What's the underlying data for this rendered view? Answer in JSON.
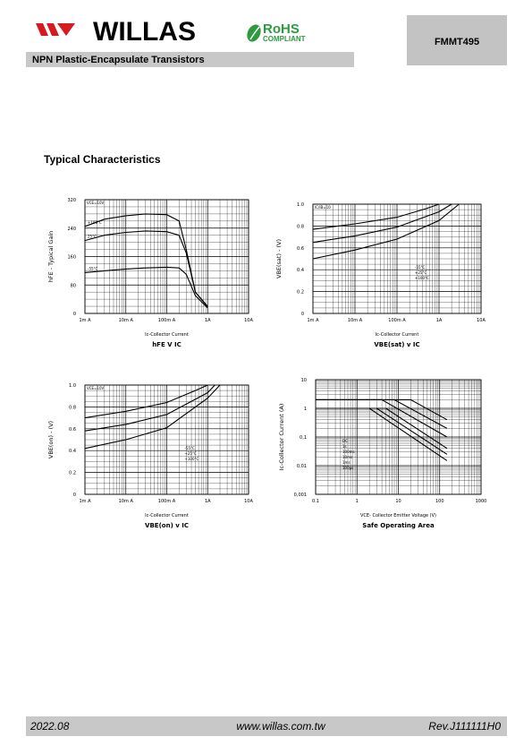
{
  "header": {
    "brand": "WILLAS",
    "rohs": "RoHS",
    "rohs_sub": "COMPLIANT",
    "part": "FMMT495",
    "subtitle": "NPN Plastic-Encapsulate Transistors"
  },
  "section_title": "Typical Characteristics",
  "chart_data": [
    {
      "type": "line",
      "title": "hFE V IC",
      "xlabel": "Ic-Collector Current",
      "ylabel": "hFE - Typical Gain",
      "note": "VCE=10V",
      "xscale": "log",
      "yscale": "linear",
      "xlim": [
        0.001,
        10
      ],
      "ylim": [
        0,
        320
      ],
      "xticks": [
        {
          "value": 0.001,
          "label": "1m A"
        },
        {
          "value": 0.01,
          "label": "10m A"
        },
        {
          "value": 0.1,
          "label": "100m A"
        },
        {
          "value": 1,
          "label": "1A"
        },
        {
          "value": 10,
          "label": "10A"
        }
      ],
      "yticks": [
        0,
        80,
        160,
        240,
        320
      ],
      "grid": true,
      "minor_grid": true,
      "series": [
        {
          "name": "+100°C",
          "color": "#000000",
          "x": [
            0.001,
            0.003,
            0.01,
            0.03,
            0.1,
            0.2,
            0.3,
            0.5,
            1
          ],
          "values": [
            245,
            265,
            275,
            280,
            278,
            260,
            180,
            60,
            20
          ]
        },
        {
          "name": "25°C",
          "color": "#000000",
          "x": [
            0.001,
            0.003,
            0.01,
            0.03,
            0.1,
            0.2,
            0.3,
            0.5,
            1
          ],
          "values": [
            205,
            220,
            228,
            232,
            230,
            220,
            170,
            60,
            18
          ]
        },
        {
          "name": "-55°C",
          "color": "#000000",
          "x": [
            0.001,
            0.003,
            0.01,
            0.03,
            0.1,
            0.2,
            0.3,
            0.5,
            1
          ],
          "values": [
            115,
            120,
            125,
            128,
            130,
            128,
            110,
            50,
            15
          ]
        }
      ]
    },
    {
      "type": "line",
      "title": "VBE(sat) v IC",
      "xlabel": "Ic-Collector Current",
      "ylabel": "VBE(sat) - (V)",
      "note": "IC/IB=10",
      "xscale": "log",
      "yscale": "linear",
      "xlim": [
        0.001,
        10
      ],
      "ylim": [
        0,
        1
      ],
      "xticks": [
        {
          "value": 0.001,
          "label": "1m A"
        },
        {
          "value": 0.01,
          "label": "10m A"
        },
        {
          "value": 0.1,
          "label": "100m A"
        },
        {
          "value": 1,
          "label": "1A"
        },
        {
          "value": 10,
          "label": "10A"
        }
      ],
      "yticks": [
        0,
        0.2,
        0.4,
        0.6,
        0.8,
        {
          "value": 1,
          "label": "1.0"
        }
      ],
      "grid": true,
      "minor_grid": true,
      "series": [
        {
          "name": "-55°C",
          "color": "#000000",
          "x": [
            0.001,
            0.01,
            0.1,
            0.5,
            1
          ],
          "values": [
            0.77,
            0.82,
            0.88,
            0.96,
            1
          ]
        },
        {
          "name": "+25°C",
          "color": "#000000",
          "x": [
            0.001,
            0.01,
            0.1,
            1,
            2
          ],
          "values": [
            0.65,
            0.71,
            0.79,
            0.93,
            1
          ]
        },
        {
          "name": "+100°C",
          "color": "#000000",
          "x": [
            0.001,
            0.01,
            0.1,
            1,
            3
          ],
          "values": [
            0.5,
            0.58,
            0.68,
            0.85,
            1
          ]
        }
      ]
    },
    {
      "type": "line",
      "title": "VBE(on) v IC",
      "xlabel": "Ic-Collector Current",
      "ylabel": "VBE(on) - (V)",
      "note": "VCE=10V",
      "xscale": "log",
      "yscale": "linear",
      "xlim": [
        0.001,
        10
      ],
      "ylim": [
        0,
        1
      ],
      "xticks": [
        {
          "value": 0.001,
          "label": "1m A"
        },
        {
          "value": 0.01,
          "label": "10m A"
        },
        {
          "value": 0.1,
          "label": "100m A"
        },
        {
          "value": 1,
          "label": "1A"
        },
        {
          "value": 10,
          "label": "10A"
        }
      ],
      "yticks": [
        0,
        0.2,
        0.4,
        0.6,
        0.8,
        {
          "value": 1,
          "label": "1.0"
        }
      ],
      "grid": true,
      "minor_grid": true,
      "series": [
        {
          "name": "-55°C",
          "color": "#000000",
          "x": [
            0.001,
            0.01,
            0.1,
            0.5,
            1
          ],
          "values": [
            0.7,
            0.76,
            0.84,
            0.95,
            1
          ]
        },
        {
          "name": "+25°C",
          "color": "#000000",
          "x": [
            0.001,
            0.01,
            0.1,
            1,
            1.5
          ],
          "values": [
            0.58,
            0.64,
            0.73,
            0.93,
            1
          ]
        },
        {
          "name": "+100°C",
          "color": "#000000",
          "x": [
            0.001,
            0.01,
            0.1,
            1,
            2
          ],
          "values": [
            0.42,
            0.5,
            0.61,
            0.88,
            1
          ]
        }
      ]
    },
    {
      "type": "line",
      "title": "Safe Operating Area",
      "xlabel": "VCE- Collector Emitter Voltage (V)",
      "ylabel": "Ic-Collector Current (A)",
      "xscale": "log",
      "yscale": "log",
      "xlim": [
        0.1,
        1000
      ],
      "ylim": [
        0.001,
        10
      ],
      "xticks": [
        0.1,
        1,
        10,
        100,
        1000
      ],
      "yticks": [
        {
          "value": 0.001,
          "label": "0,001"
        },
        {
          "value": 0.01,
          "label": "0,01"
        },
        {
          "value": 0.1,
          "label": "0,1"
        },
        1,
        10
      ],
      "grid": true,
      "minor_grid": true,
      "series": [
        {
          "name": "DC",
          "color": "#000000",
          "x": [
            0.1,
            2,
            150
          ],
          "values": [
            1,
            1,
            0.015
          ]
        },
        {
          "name": "1s",
          "color": "#000000",
          "x": [
            0.1,
            3,
            150
          ],
          "values": [
            1,
            1,
            0.025
          ]
        },
        {
          "name": "100ms",
          "color": "#000000",
          "x": [
            0.1,
            5,
            150
          ],
          "values": [
            1,
            1,
            0.04
          ]
        },
        {
          "name": "10ms",
          "color": "#000000",
          "x": [
            0.1,
            4,
            150
          ],
          "values": [
            2,
            2,
            0.1
          ]
        },
        {
          "name": "1ms",
          "color": "#000000",
          "x": [
            0.1,
            8,
            150
          ],
          "values": [
            2,
            2,
            0.2
          ]
        },
        {
          "name": "100µs",
          "color": "#000000",
          "x": [
            0.1,
            20,
            150
          ],
          "values": [
            2,
            2,
            0.4
          ]
        }
      ]
    }
  ],
  "footer": {
    "date": "2022.08",
    "url": "www.willas.com.tw",
    "rev": "Rev.J111111H0"
  }
}
